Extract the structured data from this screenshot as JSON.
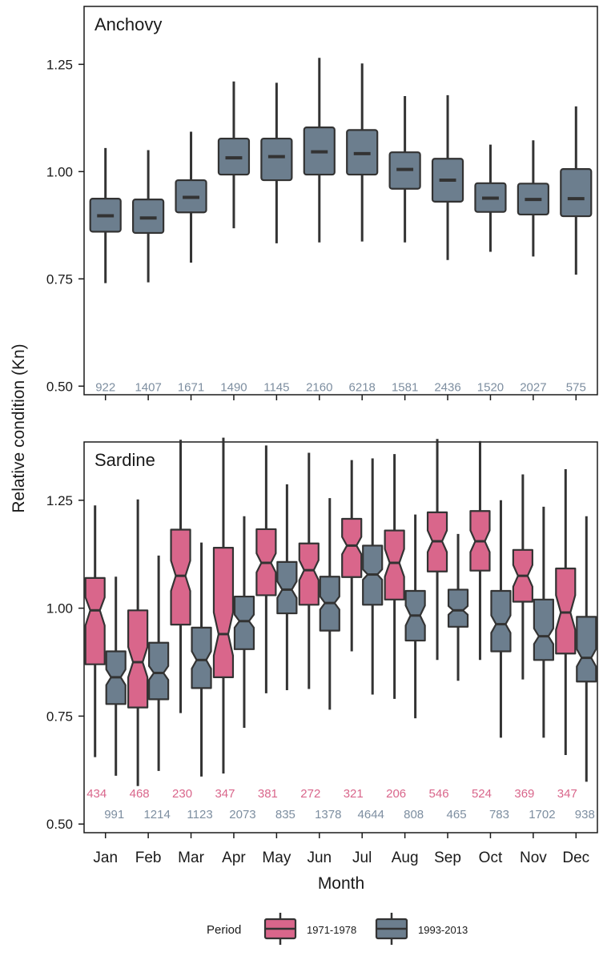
{
  "chart_data": {
    "type": "boxplot",
    "ylabel": "Relative condition (Kn)",
    "xlabel": "Month",
    "ylim": [
      0.48,
      1.385
    ],
    "yticks": [
      "0.50",
      "0.75",
      "1.00",
      "1.25"
    ],
    "ytick_values": [
      0.5,
      0.75,
      1.0,
      1.25
    ],
    "months": [
      "Jan",
      "Feb",
      "Mar",
      "Apr",
      "May",
      "Jun",
      "Jul",
      "Aug",
      "Sep",
      "Oct",
      "Nov",
      "Dec"
    ],
    "colors": {
      "p1971": "#d9668b",
      "p1993": "#6c7e8e",
      "outline": "#333333",
      "count_p1971": "#d9668b",
      "count_p1993": "#7d8ea0"
    },
    "legend": {
      "title": "Period",
      "items": [
        "1971-1978",
        "1993-2013"
      ]
    },
    "panels": [
      {
        "title": "Anchovy",
        "series": [
          {
            "period": "1993-2013",
            "boxes": [
              {
                "min": 0.74,
                "q1": 0.86,
                "median": 0.897,
                "q3": 0.937,
                "max": 1.055,
                "notch_lo": 0.892,
                "notch_hi": 0.902
              },
              {
                "min": 0.742,
                "q1": 0.857,
                "median": 0.892,
                "q3": 0.935,
                "max": 1.05,
                "notch_lo": 0.887,
                "notch_hi": 0.897
              },
              {
                "min": 0.788,
                "q1": 0.905,
                "median": 0.94,
                "q3": 0.98,
                "max": 1.093,
                "notch_lo": 0.935,
                "notch_hi": 0.945
              },
              {
                "min": 0.868,
                "q1": 0.993,
                "median": 1.032,
                "q3": 1.077,
                "max": 1.21,
                "notch_lo": 1.027,
                "notch_hi": 1.037
              },
              {
                "min": 0.833,
                "q1": 0.98,
                "median": 1.035,
                "q3": 1.077,
                "max": 1.207,
                "notch_lo": 1.029,
                "notch_hi": 1.041
              },
              {
                "min": 0.835,
                "q1": 0.993,
                "median": 1.046,
                "q3": 1.103,
                "max": 1.265,
                "notch_lo": 1.042,
                "notch_hi": 1.05
              },
              {
                "min": 0.837,
                "q1": 0.993,
                "median": 1.042,
                "q3": 1.097,
                "max": 1.252,
                "notch_lo": 1.04,
                "notch_hi": 1.044
              },
              {
                "min": 0.835,
                "q1": 0.96,
                "median": 1.005,
                "q3": 1.045,
                "max": 1.176,
                "notch_lo": 1.0,
                "notch_hi": 1.01
              },
              {
                "min": 0.794,
                "q1": 0.93,
                "median": 0.98,
                "q3": 1.03,
                "max": 1.178,
                "notch_lo": 0.975,
                "notch_hi": 0.985
              },
              {
                "min": 0.813,
                "q1": 0.906,
                "median": 0.938,
                "q3": 0.973,
                "max": 1.063,
                "notch_lo": 0.933,
                "notch_hi": 0.943
              },
              {
                "min": 0.802,
                "q1": 0.9,
                "median": 0.935,
                "q3": 0.972,
                "max": 1.073,
                "notch_lo": 0.931,
                "notch_hi": 0.939
              },
              {
                "min": 0.76,
                "q1": 0.896,
                "median": 0.937,
                "q3": 1.006,
                "max": 1.152,
                "notch_lo": 0.928,
                "notch_hi": 0.946
              }
            ],
            "counts": [
              "922",
              "1407",
              "1671",
              "1490",
              "1145",
              "2160",
              "6218",
              "1581",
              "2436",
              "1520",
              "2027",
              "575"
            ]
          }
        ]
      },
      {
        "title": "Sardine",
        "series": [
          {
            "period": "1971-1978",
            "boxes": [
              {
                "min": 0.655,
                "q1": 0.87,
                "median": 0.995,
                "q3": 1.07,
                "max": 1.238,
                "notch_lo": 0.96,
                "notch_hi": 1.025
              },
              {
                "min": 0.588,
                "q1": 0.77,
                "median": 0.875,
                "q3": 0.995,
                "max": 1.252,
                "notch_lo": 0.84,
                "notch_hi": 0.91
              },
              {
                "min": 0.757,
                "q1": 0.962,
                "median": 1.075,
                "q3": 1.182,
                "max": 1.39,
                "notch_lo": 1.04,
                "notch_hi": 1.11
              },
              {
                "min": 0.617,
                "q1": 0.84,
                "median": 0.94,
                "q3": 1.14,
                "max": 1.395,
                "notch_lo": 0.89,
                "notch_hi": 0.99
              },
              {
                "min": 0.803,
                "q1": 1.03,
                "median": 1.105,
                "q3": 1.183,
                "max": 1.377,
                "notch_lo": 1.083,
                "notch_hi": 1.127
              },
              {
                "min": 0.813,
                "q1": 1.008,
                "median": 1.088,
                "q3": 1.15,
                "max": 1.36,
                "notch_lo": 1.065,
                "notch_hi": 1.111
              },
              {
                "min": 0.9,
                "q1": 1.072,
                "median": 1.145,
                "q3": 1.207,
                "max": 1.343,
                "notch_lo": 1.125,
                "notch_hi": 1.165
              },
              {
                "min": 0.79,
                "q1": 1.02,
                "median": 1.105,
                "q3": 1.18,
                "max": 1.357,
                "notch_lo": 1.073,
                "notch_hi": 1.137
              },
              {
                "min": 0.88,
                "q1": 1.085,
                "median": 1.155,
                "q3": 1.222,
                "max": 1.392,
                "notch_lo": 1.13,
                "notch_hi": 1.18
              },
              {
                "min": 0.88,
                "q1": 1.087,
                "median": 1.155,
                "q3": 1.225,
                "max": 1.387,
                "notch_lo": 1.13,
                "notch_hi": 1.18
              },
              {
                "min": 0.835,
                "q1": 1.015,
                "median": 1.075,
                "q3": 1.135,
                "max": 1.31,
                "notch_lo": 1.05,
                "notch_hi": 1.1
              },
              {
                "min": 0.66,
                "q1": 0.895,
                "median": 0.99,
                "q3": 1.092,
                "max": 1.322,
                "notch_lo": 0.95,
                "notch_hi": 1.03
              }
            ],
            "counts": [
              "434",
              "468",
              "230",
              "347",
              "381",
              "272",
              "321",
              "206",
              "546",
              "524",
              "369",
              "347"
            ]
          },
          {
            "period": "1993-2013",
            "boxes": [
              {
                "min": 0.612,
                "q1": 0.778,
                "median": 0.84,
                "q3": 0.9,
                "max": 1.073,
                "notch_lo": 0.822,
                "notch_hi": 0.858
              },
              {
                "min": 0.623,
                "q1": 0.789,
                "median": 0.85,
                "q3": 0.92,
                "max": 1.122,
                "notch_lo": 0.834,
                "notch_hi": 0.866
              },
              {
                "min": 0.61,
                "q1": 0.815,
                "median": 0.88,
                "q3": 0.955,
                "max": 1.152,
                "notch_lo": 0.86,
                "notch_hi": 0.9
              },
              {
                "min": 0.723,
                "q1": 0.905,
                "median": 0.97,
                "q3": 1.027,
                "max": 1.213,
                "notch_lo": 0.955,
                "notch_hi": 0.985
              },
              {
                "min": 0.81,
                "q1": 0.988,
                "median": 1.043,
                "q3": 1.107,
                "max": 1.287,
                "notch_lo": 1.024,
                "notch_hi": 1.062
              },
              {
                "min": 0.765,
                "q1": 0.948,
                "median": 1.012,
                "q3": 1.073,
                "max": 1.255,
                "notch_lo": 0.997,
                "notch_hi": 1.027
              },
              {
                "min": 0.8,
                "q1": 1.008,
                "median": 1.078,
                "q3": 1.145,
                "max": 1.347,
                "notch_lo": 1.066,
                "notch_hi": 1.09
              },
              {
                "min": 0.745,
                "q1": 0.925,
                "median": 0.983,
                "q3": 1.04,
                "max": 1.217,
                "notch_lo": 0.96,
                "notch_hi": 1.006
              },
              {
                "min": 0.832,
                "q1": 0.957,
                "median": 0.995,
                "q3": 1.043,
                "max": 1.172,
                "notch_lo": 0.985,
                "notch_hi": 1.005
              },
              {
                "min": 0.7,
                "q1": 0.9,
                "median": 0.963,
                "q3": 1.04,
                "max": 1.25,
                "notch_lo": 0.943,
                "notch_hi": 0.983
              },
              {
                "min": 0.7,
                "q1": 0.88,
                "median": 0.935,
                "q3": 1.02,
                "max": 1.235,
                "notch_lo": 0.917,
                "notch_hi": 0.953
              },
              {
                "min": 0.598,
                "q1": 0.83,
                "median": 0.885,
                "q3": 0.98,
                "max": 1.213,
                "notch_lo": 0.865,
                "notch_hi": 0.905
              }
            ],
            "counts": [
              "991",
              "1214",
              "1123",
              "2073",
              "835",
              "1378",
              "4644",
              "808",
              "465",
              "783",
              "1702",
              "938"
            ]
          }
        ]
      }
    ]
  }
}
